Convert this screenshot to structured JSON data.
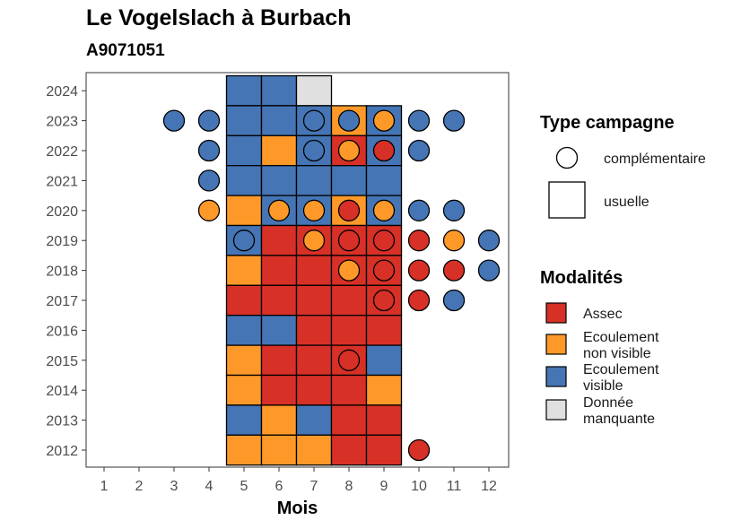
{
  "chart_data": {
    "type": "heatmap",
    "title": "Le Vogelslach à Burbach",
    "subtitle": "A9071051",
    "xlabel": "Mois",
    "ylabel": "",
    "x_ticks": [
      "1",
      "2",
      "3",
      "4",
      "5",
      "6",
      "7",
      "8",
      "9",
      "10",
      "11",
      "12"
    ],
    "y_ticks": [
      "2012",
      "2013",
      "2014",
      "2015",
      "2016",
      "2017",
      "2018",
      "2019",
      "2020",
      "2021",
      "2022",
      "2023",
      "2024"
    ],
    "xlim": [
      0.5,
      12.5
    ],
    "ylim": [
      2011.5,
      2024.5
    ],
    "colors": {
      "Assec": "#d73027",
      "Ecoulement non visible": "#fe9929",
      "Ecoulement visible": "#4575b4",
      "Donnée manquante": "#e0e0e0"
    },
    "usuelle": [
      {
        "year": 2024,
        "month": 5,
        "modalite": "Ecoulement visible"
      },
      {
        "year": 2024,
        "month": 6,
        "modalite": "Ecoulement visible"
      },
      {
        "year": 2024,
        "month": 7,
        "modalite": "Donnée manquante"
      },
      {
        "year": 2023,
        "month": 5,
        "modalite": "Ecoulement visible"
      },
      {
        "year": 2023,
        "month": 6,
        "modalite": "Ecoulement visible"
      },
      {
        "year": 2023,
        "month": 7,
        "modalite": "Ecoulement visible"
      },
      {
        "year": 2023,
        "month": 8,
        "modalite": "Ecoulement non visible"
      },
      {
        "year": 2023,
        "month": 9,
        "modalite": "Ecoulement visible"
      },
      {
        "year": 2022,
        "month": 5,
        "modalite": "Ecoulement visible"
      },
      {
        "year": 2022,
        "month": 6,
        "modalite": "Ecoulement non visible"
      },
      {
        "year": 2022,
        "month": 7,
        "modalite": "Ecoulement visible"
      },
      {
        "year": 2022,
        "month": 8,
        "modalite": "Assec"
      },
      {
        "year": 2022,
        "month": 9,
        "modalite": "Ecoulement visible"
      },
      {
        "year": 2021,
        "month": 5,
        "modalite": "Ecoulement visible"
      },
      {
        "year": 2021,
        "month": 6,
        "modalite": "Ecoulement visible"
      },
      {
        "year": 2021,
        "month": 7,
        "modalite": "Ecoulement visible"
      },
      {
        "year": 2021,
        "month": 8,
        "modalite": "Ecoulement visible"
      },
      {
        "year": 2021,
        "month": 9,
        "modalite": "Ecoulement visible"
      },
      {
        "year": 2020,
        "month": 5,
        "modalite": "Ecoulement non visible"
      },
      {
        "year": 2020,
        "month": 6,
        "modalite": "Ecoulement visible"
      },
      {
        "year": 2020,
        "month": 7,
        "modalite": "Ecoulement visible"
      },
      {
        "year": 2020,
        "month": 8,
        "modalite": "Ecoulement non visible"
      },
      {
        "year": 2020,
        "month": 9,
        "modalite": "Ecoulement visible"
      },
      {
        "year": 2019,
        "month": 5,
        "modalite": "Ecoulement visible"
      },
      {
        "year": 2019,
        "month": 6,
        "modalite": "Assec"
      },
      {
        "year": 2019,
        "month": 7,
        "modalite": "Assec"
      },
      {
        "year": 2019,
        "month": 8,
        "modalite": "Assec"
      },
      {
        "year": 2019,
        "month": 9,
        "modalite": "Assec"
      },
      {
        "year": 2018,
        "month": 5,
        "modalite": "Ecoulement non visible"
      },
      {
        "year": 2018,
        "month": 6,
        "modalite": "Assec"
      },
      {
        "year": 2018,
        "month": 7,
        "modalite": "Assec"
      },
      {
        "year": 2018,
        "month": 8,
        "modalite": "Assec"
      },
      {
        "year": 2018,
        "month": 9,
        "modalite": "Assec"
      },
      {
        "year": 2017,
        "month": 5,
        "modalite": "Assec"
      },
      {
        "year": 2017,
        "month": 6,
        "modalite": "Assec"
      },
      {
        "year": 2017,
        "month": 7,
        "modalite": "Assec"
      },
      {
        "year": 2017,
        "month": 8,
        "modalite": "Assec"
      },
      {
        "year": 2017,
        "month": 9,
        "modalite": "Assec"
      },
      {
        "year": 2016,
        "month": 5,
        "modalite": "Ecoulement visible"
      },
      {
        "year": 2016,
        "month": 6,
        "modalite": "Ecoulement visible"
      },
      {
        "year": 2016,
        "month": 7,
        "modalite": "Assec"
      },
      {
        "year": 2016,
        "month": 8,
        "modalite": "Assec"
      },
      {
        "year": 2016,
        "month": 9,
        "modalite": "Assec"
      },
      {
        "year": 2015,
        "month": 5,
        "modalite": "Ecoulement non visible"
      },
      {
        "year": 2015,
        "month": 6,
        "modalite": "Assec"
      },
      {
        "year": 2015,
        "month": 7,
        "modalite": "Assec"
      },
      {
        "year": 2015,
        "month": 8,
        "modalite": "Assec"
      },
      {
        "year": 2015,
        "month": 9,
        "modalite": "Ecoulement visible"
      },
      {
        "year": 2014,
        "month": 5,
        "modalite": "Ecoulement non visible"
      },
      {
        "year": 2014,
        "month": 6,
        "modalite": "Assec"
      },
      {
        "year": 2014,
        "month": 7,
        "modalite": "Assec"
      },
      {
        "year": 2014,
        "month": 8,
        "modalite": "Assec"
      },
      {
        "year": 2014,
        "month": 9,
        "modalite": "Ecoulement non visible"
      },
      {
        "year": 2013,
        "month": 5,
        "modalite": "Ecoulement visible"
      },
      {
        "year": 2013,
        "month": 6,
        "modalite": "Ecoulement non visible"
      },
      {
        "year": 2013,
        "month": 7,
        "modalite": "Ecoulement visible"
      },
      {
        "year": 2013,
        "month": 8,
        "modalite": "Assec"
      },
      {
        "year": 2013,
        "month": 9,
        "modalite": "Assec"
      },
      {
        "year": 2012,
        "month": 5,
        "modalite": "Ecoulement non visible"
      },
      {
        "year": 2012,
        "month": 6,
        "modalite": "Ecoulement non visible"
      },
      {
        "year": 2012,
        "month": 7,
        "modalite": "Ecoulement non visible"
      },
      {
        "year": 2012,
        "month": 8,
        "modalite": "Assec"
      },
      {
        "year": 2012,
        "month": 9,
        "modalite": "Assec"
      }
    ],
    "complementaire": [
      {
        "year": 2023,
        "month": 3,
        "modalite": "Ecoulement visible"
      },
      {
        "year": 2023,
        "month": 4,
        "modalite": "Ecoulement visible"
      },
      {
        "year": 2023,
        "month": 7,
        "modalite": "Ecoulement visible"
      },
      {
        "year": 2023,
        "month": 8,
        "modalite": "Ecoulement visible"
      },
      {
        "year": 2023,
        "month": 9,
        "modalite": "Ecoulement non visible"
      },
      {
        "year": 2023,
        "month": 10,
        "modalite": "Ecoulement visible"
      },
      {
        "year": 2023,
        "month": 11,
        "modalite": "Ecoulement visible"
      },
      {
        "year": 2022,
        "month": 4,
        "modalite": "Ecoulement visible"
      },
      {
        "year": 2022,
        "month": 7,
        "modalite": "Ecoulement visible"
      },
      {
        "year": 2022,
        "month": 8,
        "modalite": "Ecoulement non visible"
      },
      {
        "year": 2022,
        "month": 9,
        "modalite": "Assec"
      },
      {
        "year": 2022,
        "month": 10,
        "modalite": "Ecoulement visible"
      },
      {
        "year": 2021,
        "month": 4,
        "modalite": "Ecoulement visible"
      },
      {
        "year": 2020,
        "month": 4,
        "modalite": "Ecoulement non visible"
      },
      {
        "year": 2020,
        "month": 6,
        "modalite": "Ecoulement non visible"
      },
      {
        "year": 2020,
        "month": 7,
        "modalite": "Ecoulement non visible"
      },
      {
        "year": 2020,
        "month": 8,
        "modalite": "Assec"
      },
      {
        "year": 2020,
        "month": 9,
        "modalite": "Ecoulement non visible"
      },
      {
        "year": 2020,
        "month": 10,
        "modalite": "Ecoulement visible"
      },
      {
        "year": 2020,
        "month": 11,
        "modalite": "Ecoulement visible"
      },
      {
        "year": 2019,
        "month": 5,
        "modalite": "Ecoulement visible"
      },
      {
        "year": 2019,
        "month": 7,
        "modalite": "Ecoulement non visible"
      },
      {
        "year": 2019,
        "month": 8,
        "modalite": "Assec"
      },
      {
        "year": 2019,
        "month": 9,
        "modalite": "Assec"
      },
      {
        "year": 2019,
        "month": 10,
        "modalite": "Assec"
      },
      {
        "year": 2019,
        "month": 11,
        "modalite": "Ecoulement non visible"
      },
      {
        "year": 2019,
        "month": 12,
        "modalite": "Ecoulement visible"
      },
      {
        "year": 2018,
        "month": 8,
        "modalite": "Ecoulement non visible"
      },
      {
        "year": 2018,
        "month": 9,
        "modalite": "Assec"
      },
      {
        "year": 2018,
        "month": 10,
        "modalite": "Assec"
      },
      {
        "year": 2018,
        "month": 11,
        "modalite": "Assec"
      },
      {
        "year": 2018,
        "month": 12,
        "modalite": "Ecoulement visible"
      },
      {
        "year": 2017,
        "month": 9,
        "modalite": "Assec"
      },
      {
        "year": 2017,
        "month": 10,
        "modalite": "Assec"
      },
      {
        "year": 2017,
        "month": 11,
        "modalite": "Ecoulement visible"
      },
      {
        "year": 2015,
        "month": 8,
        "modalite": "Assec"
      },
      {
        "year": 2012,
        "month": 10,
        "modalite": "Assec"
      }
    ],
    "legend_type": {
      "title": "Type campagne",
      "items": [
        "complémentaire",
        "usuelle"
      ]
    },
    "legend_modalites": {
      "title": "Modalités",
      "items": [
        {
          "lines": [
            "Assec"
          ],
          "key": "Assec"
        },
        {
          "lines": [
            "Ecoulement",
            "non visible"
          ],
          "key": "Ecoulement non visible"
        },
        {
          "lines": [
            "Ecoulement",
            "visible"
          ],
          "key": "Ecoulement visible"
        },
        {
          "lines": [
            "Donnée",
            "manquante"
          ],
          "key": "Donnée manquante"
        }
      ]
    },
    "legend_position": "right",
    "grid": false
  }
}
